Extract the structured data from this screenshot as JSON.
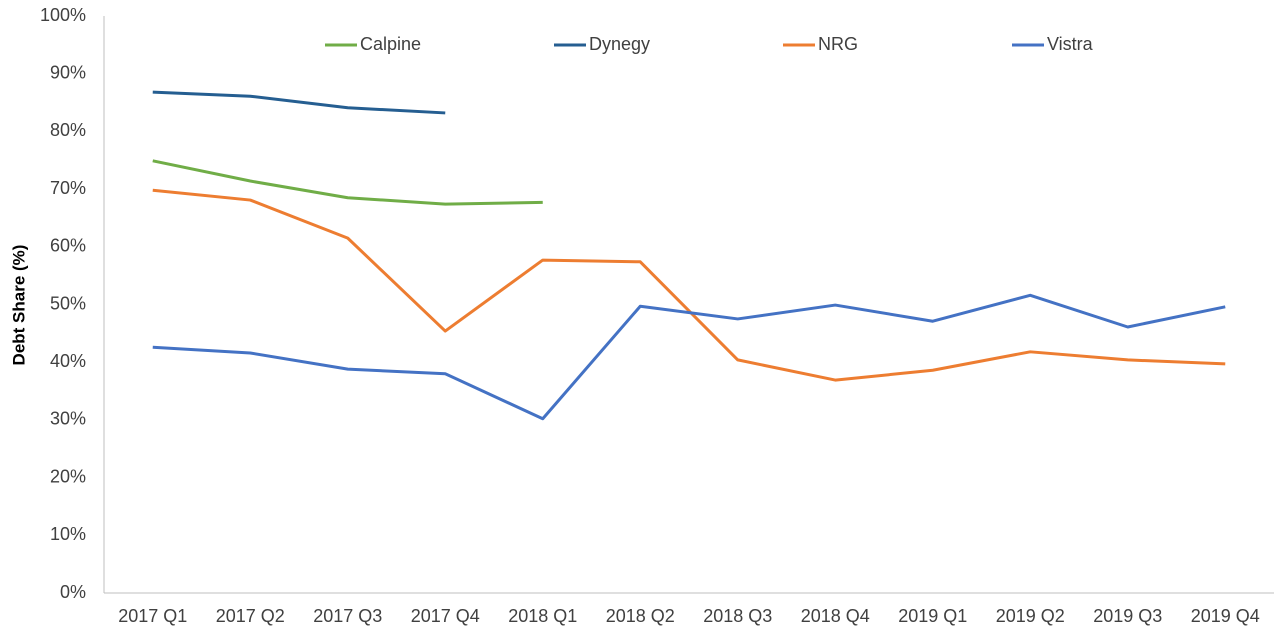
{
  "chart_data": {
    "type": "line",
    "y_label": "Debt Share (%)",
    "categories": [
      "2017 Q1",
      "2017 Q2",
      "2017 Q3",
      "2017 Q4",
      "2018 Q1",
      "2018 Q2",
      "2018 Q3",
      "2018 Q4",
      "2019 Q1",
      "2019 Q2",
      "2019 Q3",
      "2019 Q4"
    ],
    "series": [
      {
        "name": "Calpine",
        "color": "#70ad47",
        "values": [
          74.9,
          71.4,
          68.5,
          67.4,
          67.7,
          null,
          null,
          null,
          null,
          null,
          null,
          null
        ]
      },
      {
        "name": "Dynegy",
        "color": "#255e91",
        "values": [
          86.8,
          86.1,
          84.1,
          83.2,
          null,
          null,
          null,
          null,
          null,
          null,
          null,
          null
        ]
      },
      {
        "name": "NRG",
        "color": "#ed7d31",
        "values": [
          69.8,
          68.1,
          61.5,
          45.4,
          57.7,
          57.4,
          40.4,
          36.9,
          38.6,
          41.8,
          40.4,
          39.7
        ]
      },
      {
        "name": "Vistra",
        "color": "#4472c4",
        "values": [
          42.6,
          41.6,
          38.8,
          38.0,
          30.2,
          49.7,
          47.5,
          49.9,
          47.1,
          51.6,
          46.1,
          49.6
        ]
      }
    ],
    "ylim": [
      0,
      100
    ],
    "yticks": [
      {
        "value": 0,
        "label": "0%"
      },
      {
        "value": 10,
        "label": "10%"
      },
      {
        "value": 20,
        "label": "20%"
      },
      {
        "value": 30,
        "label": "30%"
      },
      {
        "value": 40,
        "label": "40%"
      },
      {
        "value": 50,
        "label": "50%"
      },
      {
        "value": 60,
        "label": "60%"
      },
      {
        "value": 70,
        "label": "70%"
      },
      {
        "value": 80,
        "label": "80%"
      },
      {
        "value": 90,
        "label": "90%"
      },
      {
        "value": 100,
        "label": "100%"
      }
    ],
    "grid": false,
    "legend": "top"
  }
}
